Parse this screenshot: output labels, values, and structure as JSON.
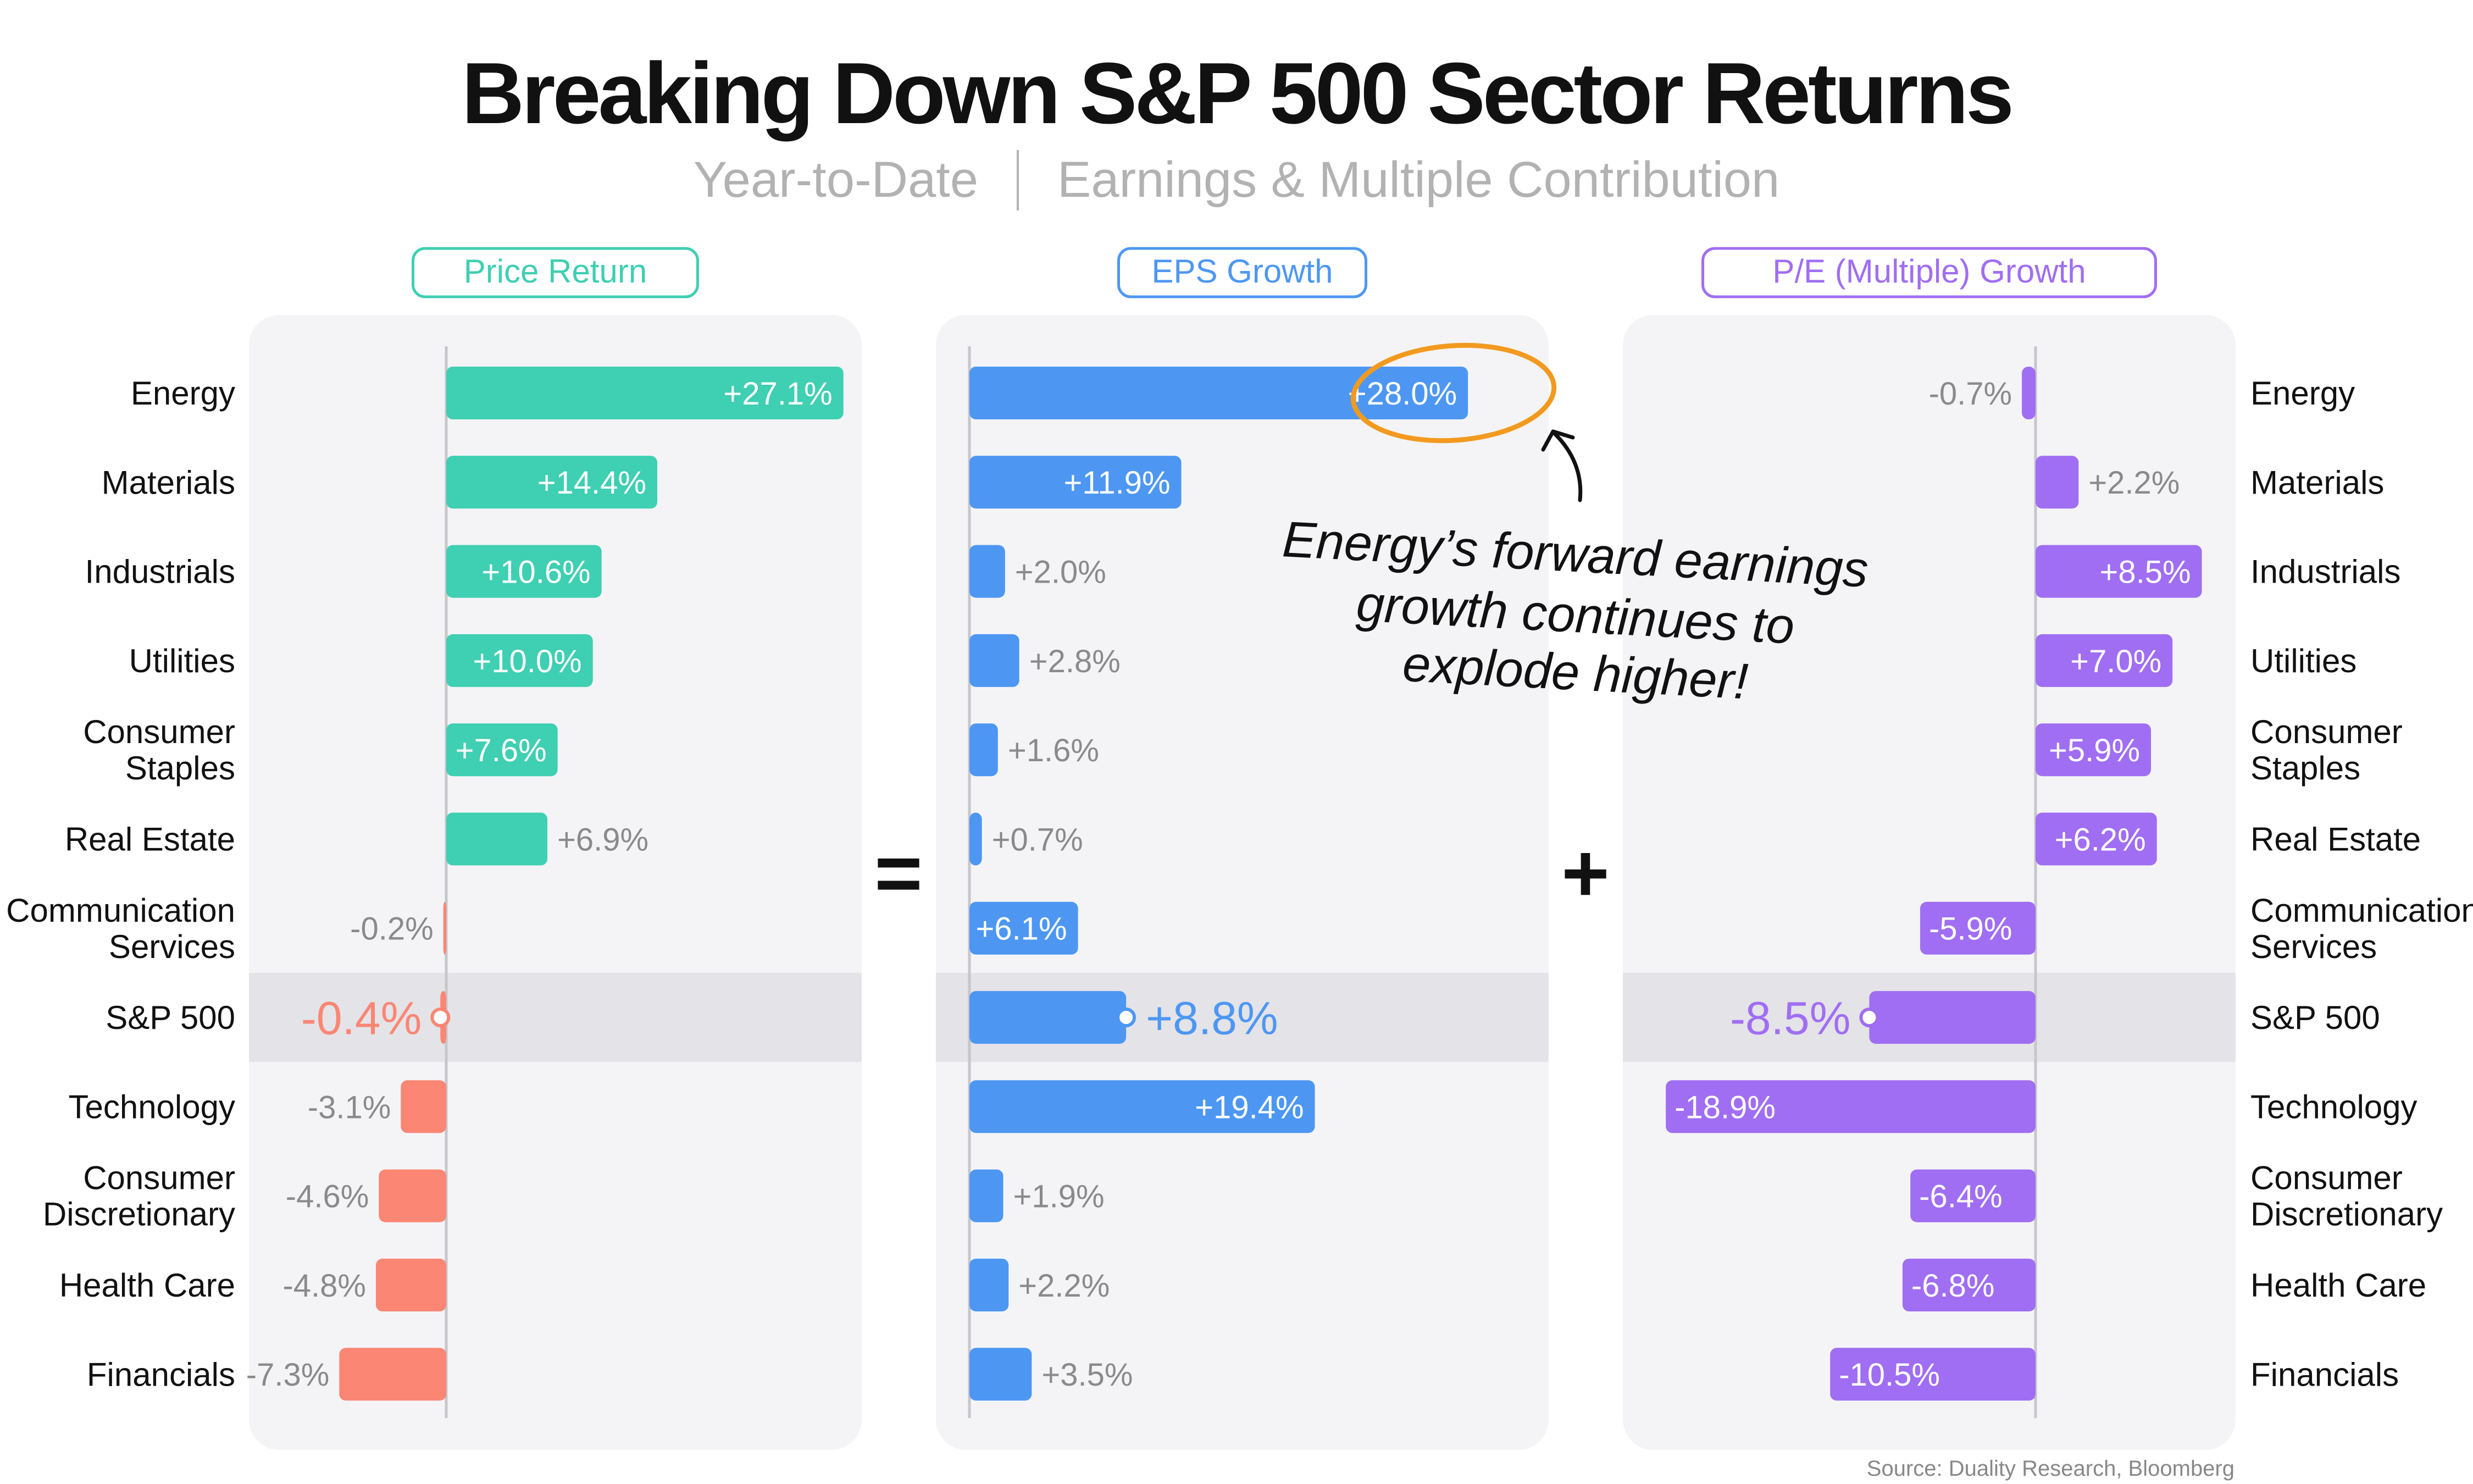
{
  "title": "Breaking Down S&P 500 Sector Returns",
  "subtitle": {
    "left": "Year-to-Date",
    "right": "Earnings & Multiple Contribution"
  },
  "source": "Source: Duality Research, Bloomberg",
  "operators": {
    "equals": "=",
    "plus": "+"
  },
  "annotation": {
    "lines": [
      "Energy’s forward earnings",
      "growth continues to",
      "explode higher!"
    ],
    "color": "#f29a1f"
  },
  "colors": {
    "price_pos": "#3fcfb2",
    "price_neg": "#fa8673",
    "eps": "#4d97f3",
    "pe": "#a06ef2",
    "highlight_band": "#e4e3e7",
    "panel_bg": "#f4f4f7"
  },
  "chart_data": [
    {
      "type": "bar",
      "orientation": "horizontal",
      "title": "Price Return",
      "title_color": "#3fcfb2",
      "categories": [
        "Energy",
        "Materials",
        "Industrials",
        "Utilities",
        "Consumer Staples",
        "Real Estate",
        "Communication Services",
        "S&P 500",
        "Technology",
        "Consumer Discretionary",
        "Health Care",
        "Financials"
      ],
      "values": [
        27.1,
        14.4,
        10.6,
        10.0,
        7.6,
        6.9,
        -0.2,
        -0.4,
        -3.1,
        -4.6,
        -4.8,
        -7.3
      ],
      "labels": [
        "+27.1%",
        "+14.4%",
        "+10.6%",
        "+10.0%",
        "+7.6%",
        "+6.9%",
        "-0.2%",
        "-0.4%",
        "-3.1%",
        "-4.6%",
        "-4.8%",
        "-7.3%"
      ],
      "xlim": [
        -13.3,
        28.5
      ],
      "highlight": "S&P 500"
    },
    {
      "type": "bar",
      "orientation": "horizontal",
      "title": "EPS Growth",
      "title_color": "#4d97f3",
      "categories": [
        "Energy",
        "Materials",
        "Industrials",
        "Utilities",
        "Consumer Staples",
        "Real Estate",
        "Communication Services",
        "S&P 500",
        "Technology",
        "Consumer Discretionary",
        "Health Care",
        "Financials"
      ],
      "values": [
        28.0,
        11.9,
        2.0,
        2.8,
        1.6,
        0.7,
        6.1,
        8.8,
        19.4,
        1.9,
        2.2,
        3.5
      ],
      "labels": [
        "+28.0%",
        "+11.9%",
        "+2.0%",
        "+2.8%",
        "+1.6%",
        "+0.7%",
        "+6.1%",
        "+8.8%",
        "+19.4%",
        "+1.9%",
        "+2.2%",
        "+3.5%"
      ],
      "xlim": [
        -1.9,
        29.6
      ],
      "highlight": "S&P 500"
    },
    {
      "type": "bar",
      "orientation": "horizontal",
      "title": "P/E (Multiple) Growth",
      "title_color": "#a06ef2",
      "categories": [
        "Energy",
        "Materials",
        "Industrials",
        "Utilities",
        "Consumer Staples",
        "Real Estate",
        "Communication Services",
        "S&P 500",
        "Technology",
        "Consumer Discretionary",
        "Health Care",
        "Financials"
      ],
      "values": [
        -0.7,
        2.2,
        8.5,
        7.0,
        5.9,
        6.2,
        -5.9,
        -8.5,
        -18.9,
        -6.4,
        -6.8,
        -10.5
      ],
      "labels": [
        "-0.7%",
        "+2.2%",
        "+8.5%",
        "+7.0%",
        "+5.9%",
        "+6.2%",
        "-5.9%",
        "-8.5%",
        "-18.9%",
        "-6.4%",
        "-6.8%",
        "-10.5%"
      ],
      "xlim": [
        -20.7,
        10.9
      ],
      "highlight": "S&P 500"
    }
  ]
}
